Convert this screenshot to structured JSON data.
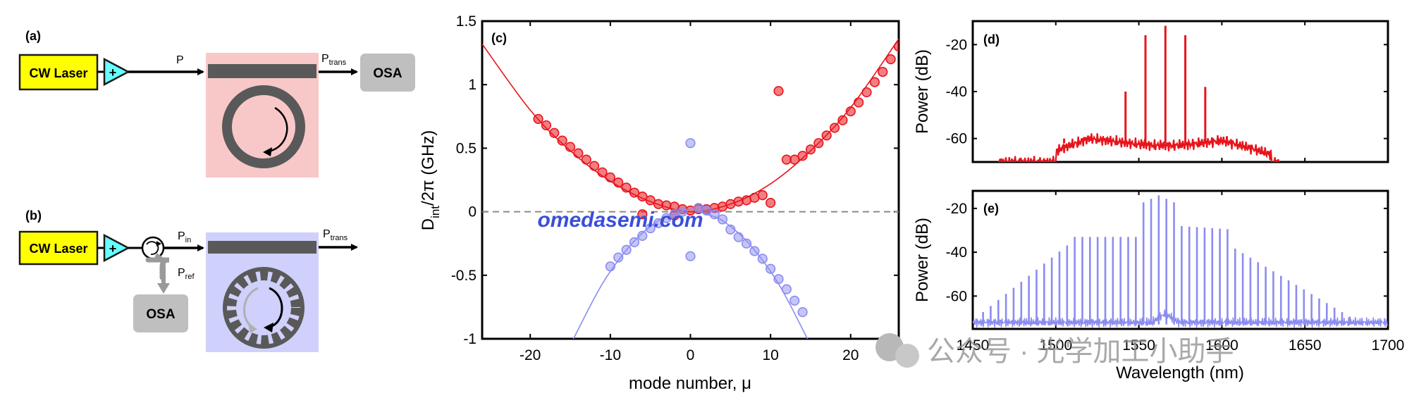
{
  "panel_a": {
    "tag": "(a)",
    "laser": "CW Laser",
    "amp": "+",
    "p_in": "P",
    "p_trans_main": "P",
    "p_trans_sub": "trans",
    "osa": "OSA"
  },
  "panel_b": {
    "tag": "(b)",
    "laser": "CW Laser",
    "amp": "+",
    "p_in_main": "P",
    "p_in_sub": "in",
    "p_trans_main": "P",
    "p_trans_sub": "trans",
    "p_ref_main": "P",
    "p_ref_sub": "ref",
    "osa": "OSA"
  },
  "watermarks": {
    "site": "omedasemi.com",
    "wechat": "公众号 · 光学加工小助手"
  },
  "colors": {
    "red": "#e8141c",
    "blue": "#8b8cf0",
    "laser_yellow": "#ffff00",
    "amp_cyan": "#66ffff",
    "ring_pink": "#f8c8c8",
    "ring_lavender": "#cfd0fb",
    "osa_gray": "#bfbfbf",
    "watermark_blue": "#3a4fd6"
  },
  "chart_data": [
    {
      "id": "c",
      "type": "scatter",
      "tag": "(c)",
      "ylabel_main": "D",
      "ylabel_sub": "int",
      "ylabel_rest": "/2π (GHz)",
      "xlabel": "mode number, μ",
      "xlim": [
        -26,
        26
      ],
      "ylim": [
        -1,
        1.5
      ],
      "xticks": [
        -20,
        -10,
        0,
        10,
        20
      ],
      "yticks": [
        -1,
        -0.5,
        0,
        0.5,
        1,
        1.5
      ],
      "xtick_labels": [
        "-20",
        "-10",
        "0",
        "10",
        "20"
      ],
      "ytick_labels": [
        "-1",
        "-0.5",
        "0",
        "0.5",
        "1",
        "1.5"
      ],
      "zero_line": "dashed",
      "series": [
        {
          "color": "red",
          "points": [
            [
              -19,
              0.73
            ],
            [
              -18,
              0.68
            ],
            [
              -17,
              0.62
            ],
            [
              -16,
              0.56
            ],
            [
              -15,
              0.51
            ],
            [
              -14,
              0.46
            ],
            [
              -13,
              0.41
            ],
            [
              -12,
              0.36
            ],
            [
              -11,
              0.31
            ],
            [
              -10,
              0.27
            ],
            [
              -9,
              0.23
            ],
            [
              -8,
              0.19
            ],
            [
              -7,
              0.15
            ],
            [
              -6,
              0.12
            ],
            [
              -5,
              0.09
            ],
            [
              -4,
              0.06
            ],
            [
              -3,
              0.05
            ],
            [
              -2,
              0.04
            ],
            [
              -1,
              0.02
            ],
            [
              0,
              0.01
            ],
            [
              1,
              0.02
            ],
            [
              2,
              0.02
            ],
            [
              3,
              0.03
            ],
            [
              4,
              0.04
            ],
            [
              5,
              0.06
            ],
            [
              6,
              0.08
            ],
            [
              7,
              0.09
            ],
            [
              8,
              0.11
            ],
            [
              9,
              0.13
            ],
            [
              10,
              0.07
            ],
            [
              11,
              0.95
            ],
            [
              12,
              0.41
            ],
            [
              13,
              0.41
            ],
            [
              14,
              0.44
            ],
            [
              15,
              0.49
            ],
            [
              16,
              0.54
            ],
            [
              17,
              0.6
            ],
            [
              18,
              0.66
            ],
            [
              19,
              0.72
            ],
            [
              20,
              0.79
            ],
            [
              21,
              0.86
            ],
            [
              22,
              0.94
            ],
            [
              23,
              1.02
            ],
            [
              24,
              1.1
            ],
            [
              25,
              1.2
            ],
            [
              26,
              1.3
            ],
            [
              -6,
              -0.02
            ],
            [
              -2,
              -0.03
            ]
          ],
          "fit": [
            [
              -26,
              1.32
            ],
            [
              -20,
              0.8
            ],
            [
              -15,
              0.48
            ],
            [
              -10,
              0.24
            ],
            [
              -5,
              0.08
            ],
            [
              0,
              0.0
            ],
            [
              5,
              0.06
            ],
            [
              10,
              0.22
            ],
            [
              15,
              0.48
            ],
            [
              20,
              0.82
            ],
            [
              26,
              1.36
            ]
          ]
        },
        {
          "color": "blue",
          "points": [
            [
              -10,
              -0.43
            ],
            [
              -9,
              -0.36
            ],
            [
              -8,
              -0.3
            ],
            [
              -7,
              -0.24
            ],
            [
              -6,
              -0.19
            ],
            [
              -5,
              -0.13
            ],
            [
              -4,
              -0.09
            ],
            [
              -3,
              -0.05
            ],
            [
              -2,
              -0.02
            ],
            [
              -1,
              0.0
            ],
            [
              0,
              0.54
            ],
            [
              0,
              -0.35
            ],
            [
              1,
              0.03
            ],
            [
              2,
              0.01
            ],
            [
              3,
              -0.02
            ],
            [
              4,
              -0.06
            ],
            [
              5,
              -0.14
            ],
            [
              6,
              -0.2
            ],
            [
              7,
              -0.25
            ],
            [
              8,
              -0.31
            ],
            [
              9,
              -0.37
            ],
            [
              10,
              -0.45
            ],
            [
              11,
              -0.53
            ],
            [
              12,
              -0.61
            ],
            [
              13,
              -0.7
            ],
            [
              14,
              -0.79
            ]
          ],
          "fit": [
            [
              -14.6,
              -1.0
            ],
            [
              -12,
              -0.68
            ],
            [
              -10,
              -0.47
            ],
            [
              -7,
              -0.23
            ],
            [
              -4,
              -0.07
            ],
            [
              -2,
              -0.02
            ],
            [
              0,
              0.02
            ],
            [
              2,
              -0.02
            ],
            [
              4,
              -0.07
            ],
            [
              7,
              -0.23
            ],
            [
              10,
              -0.47
            ],
            [
              12,
              -0.68
            ],
            [
              14.6,
              -1.0
            ]
          ]
        }
      ]
    },
    {
      "id": "d",
      "type": "line",
      "tag": "(d)",
      "ylabel": "Power (dB)",
      "xlim": [
        1450,
        1700
      ],
      "ylim": [
        -70,
        -10
      ],
      "yticks": [
        -60,
        -40,
        -20
      ],
      "ytick_labels": [
        "-60",
        "-40",
        "-20"
      ],
      "color": "red",
      "comb_lines": [
        [
          1505,
          -60
        ],
        [
          1542,
          -40
        ],
        [
          1554,
          -16
        ],
        [
          1566,
          -12
        ],
        [
          1578,
          -16
        ],
        [
          1590,
          -38
        ],
        [
          1603,
          -59
        ]
      ]
    },
    {
      "id": "e",
      "type": "line",
      "tag": "(e)",
      "ylabel": "Power (dB)",
      "xlabel": "Wavelength (nm)",
      "xlim": [
        1450,
        1700
      ],
      "ylim": [
        -75,
        -12
      ],
      "xticks": [
        1450,
        1500,
        1550,
        1600,
        1650,
        1700
      ],
      "xtick_labels": [
        "1450",
        "1500",
        "1550",
        "1600",
        "1650",
        "1700"
      ],
      "yticks": [
        -60,
        -40,
        -20
      ],
      "ytick_labels": [
        "-60",
        "-40",
        "-20"
      ],
      "color": "blue",
      "comb_center": 1562,
      "comb_spacing": 4.6
    }
  ]
}
